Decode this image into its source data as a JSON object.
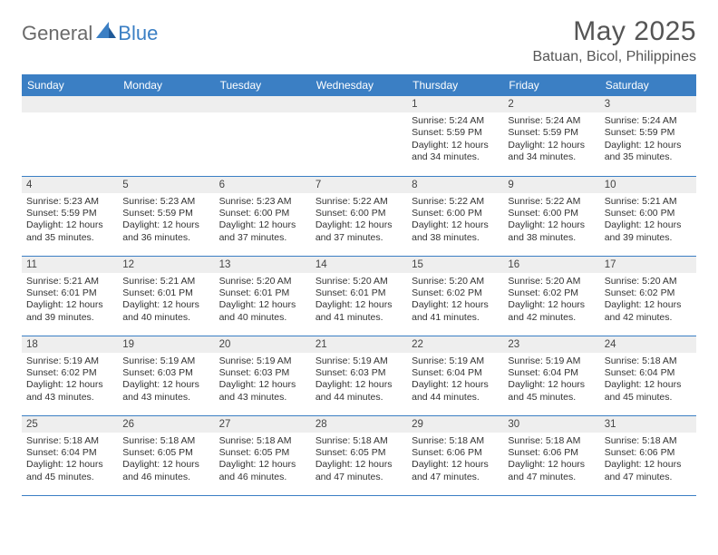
{
  "brand": {
    "part1": "General",
    "part2": "Blue"
  },
  "title": "May 2025",
  "location": "Batuan, Bicol, Philippines",
  "colors": {
    "header_bg": "#3b7fc4",
    "daynum_bg": "#eeeeee",
    "body_text": "#333333",
    "title_text": "#555555"
  },
  "weekdays": [
    "Sunday",
    "Monday",
    "Tuesday",
    "Wednesday",
    "Thursday",
    "Friday",
    "Saturday"
  ],
  "weeks": [
    [
      {
        "n": "",
        "sr": "",
        "ss": "",
        "dl": ""
      },
      {
        "n": "",
        "sr": "",
        "ss": "",
        "dl": ""
      },
      {
        "n": "",
        "sr": "",
        "ss": "",
        "dl": ""
      },
      {
        "n": "",
        "sr": "",
        "ss": "",
        "dl": ""
      },
      {
        "n": "1",
        "sr": "Sunrise: 5:24 AM",
        "ss": "Sunset: 5:59 PM",
        "dl": "Daylight: 12 hours and 34 minutes."
      },
      {
        "n": "2",
        "sr": "Sunrise: 5:24 AM",
        "ss": "Sunset: 5:59 PM",
        "dl": "Daylight: 12 hours and 34 minutes."
      },
      {
        "n": "3",
        "sr": "Sunrise: 5:24 AM",
        "ss": "Sunset: 5:59 PM",
        "dl": "Daylight: 12 hours and 35 minutes."
      }
    ],
    [
      {
        "n": "4",
        "sr": "Sunrise: 5:23 AM",
        "ss": "Sunset: 5:59 PM",
        "dl": "Daylight: 12 hours and 35 minutes."
      },
      {
        "n": "5",
        "sr": "Sunrise: 5:23 AM",
        "ss": "Sunset: 5:59 PM",
        "dl": "Daylight: 12 hours and 36 minutes."
      },
      {
        "n": "6",
        "sr": "Sunrise: 5:23 AM",
        "ss": "Sunset: 6:00 PM",
        "dl": "Daylight: 12 hours and 37 minutes."
      },
      {
        "n": "7",
        "sr": "Sunrise: 5:22 AM",
        "ss": "Sunset: 6:00 PM",
        "dl": "Daylight: 12 hours and 37 minutes."
      },
      {
        "n": "8",
        "sr": "Sunrise: 5:22 AM",
        "ss": "Sunset: 6:00 PM",
        "dl": "Daylight: 12 hours and 38 minutes."
      },
      {
        "n": "9",
        "sr": "Sunrise: 5:22 AM",
        "ss": "Sunset: 6:00 PM",
        "dl": "Daylight: 12 hours and 38 minutes."
      },
      {
        "n": "10",
        "sr": "Sunrise: 5:21 AM",
        "ss": "Sunset: 6:00 PM",
        "dl": "Daylight: 12 hours and 39 minutes."
      }
    ],
    [
      {
        "n": "11",
        "sr": "Sunrise: 5:21 AM",
        "ss": "Sunset: 6:01 PM",
        "dl": "Daylight: 12 hours and 39 minutes."
      },
      {
        "n": "12",
        "sr": "Sunrise: 5:21 AM",
        "ss": "Sunset: 6:01 PM",
        "dl": "Daylight: 12 hours and 40 minutes."
      },
      {
        "n": "13",
        "sr": "Sunrise: 5:20 AM",
        "ss": "Sunset: 6:01 PM",
        "dl": "Daylight: 12 hours and 40 minutes."
      },
      {
        "n": "14",
        "sr": "Sunrise: 5:20 AM",
        "ss": "Sunset: 6:01 PM",
        "dl": "Daylight: 12 hours and 41 minutes."
      },
      {
        "n": "15",
        "sr": "Sunrise: 5:20 AM",
        "ss": "Sunset: 6:02 PM",
        "dl": "Daylight: 12 hours and 41 minutes."
      },
      {
        "n": "16",
        "sr": "Sunrise: 5:20 AM",
        "ss": "Sunset: 6:02 PM",
        "dl": "Daylight: 12 hours and 42 minutes."
      },
      {
        "n": "17",
        "sr": "Sunrise: 5:20 AM",
        "ss": "Sunset: 6:02 PM",
        "dl": "Daylight: 12 hours and 42 minutes."
      }
    ],
    [
      {
        "n": "18",
        "sr": "Sunrise: 5:19 AM",
        "ss": "Sunset: 6:02 PM",
        "dl": "Daylight: 12 hours and 43 minutes."
      },
      {
        "n": "19",
        "sr": "Sunrise: 5:19 AM",
        "ss": "Sunset: 6:03 PM",
        "dl": "Daylight: 12 hours and 43 minutes."
      },
      {
        "n": "20",
        "sr": "Sunrise: 5:19 AM",
        "ss": "Sunset: 6:03 PM",
        "dl": "Daylight: 12 hours and 43 minutes."
      },
      {
        "n": "21",
        "sr": "Sunrise: 5:19 AM",
        "ss": "Sunset: 6:03 PM",
        "dl": "Daylight: 12 hours and 44 minutes."
      },
      {
        "n": "22",
        "sr": "Sunrise: 5:19 AM",
        "ss": "Sunset: 6:04 PM",
        "dl": "Daylight: 12 hours and 44 minutes."
      },
      {
        "n": "23",
        "sr": "Sunrise: 5:19 AM",
        "ss": "Sunset: 6:04 PM",
        "dl": "Daylight: 12 hours and 45 minutes."
      },
      {
        "n": "24",
        "sr": "Sunrise: 5:18 AM",
        "ss": "Sunset: 6:04 PM",
        "dl": "Daylight: 12 hours and 45 minutes."
      }
    ],
    [
      {
        "n": "25",
        "sr": "Sunrise: 5:18 AM",
        "ss": "Sunset: 6:04 PM",
        "dl": "Daylight: 12 hours and 45 minutes."
      },
      {
        "n": "26",
        "sr": "Sunrise: 5:18 AM",
        "ss": "Sunset: 6:05 PM",
        "dl": "Daylight: 12 hours and 46 minutes."
      },
      {
        "n": "27",
        "sr": "Sunrise: 5:18 AM",
        "ss": "Sunset: 6:05 PM",
        "dl": "Daylight: 12 hours and 46 minutes."
      },
      {
        "n": "28",
        "sr": "Sunrise: 5:18 AM",
        "ss": "Sunset: 6:05 PM",
        "dl": "Daylight: 12 hours and 47 minutes."
      },
      {
        "n": "29",
        "sr": "Sunrise: 5:18 AM",
        "ss": "Sunset: 6:06 PM",
        "dl": "Daylight: 12 hours and 47 minutes."
      },
      {
        "n": "30",
        "sr": "Sunrise: 5:18 AM",
        "ss": "Sunset: 6:06 PM",
        "dl": "Daylight: 12 hours and 47 minutes."
      },
      {
        "n": "31",
        "sr": "Sunrise: 5:18 AM",
        "ss": "Sunset: 6:06 PM",
        "dl": "Daylight: 12 hours and 47 minutes."
      }
    ]
  ]
}
